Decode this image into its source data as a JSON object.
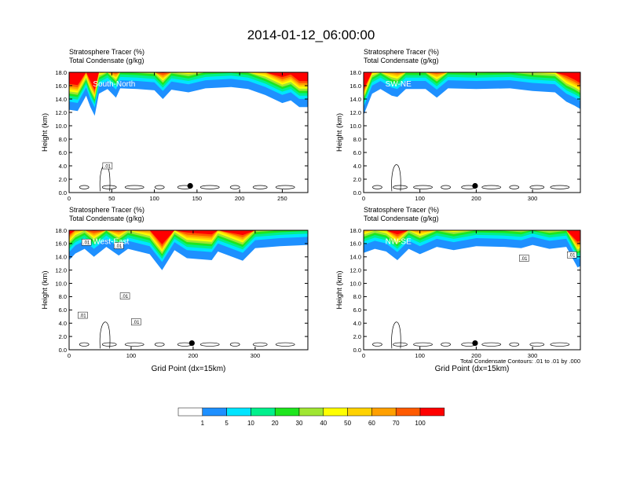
{
  "title": "2014-01-12_06:00:00",
  "colors": {
    "fill_levels": [
      "#ffffff",
      "#1e90ff",
      "#00e5ff",
      "#00f08c",
      "#1ee61e",
      "#a0e632",
      "#ffff00",
      "#ffd200",
      "#ffa000",
      "#ff5a00",
      "#ff0000"
    ],
    "contour": "#000000"
  },
  "colorbar": {
    "labels": [
      "1",
      "5",
      "10",
      "20",
      "30",
      "40",
      "50",
      "60",
      "70",
      "100"
    ]
  },
  "contour_note": "Total Condensate Contours: .01 to .01 by .000",
  "chart_data": [
    {
      "type": "heatmap",
      "left_title_1": "Stratosphere Tracer   (%)",
      "left_title_2": "Total Condensate   (g/kg)",
      "annotation": "South-North",
      "ylabel": "Height (km)",
      "xlabel": "",
      "xlim": [
        0,
        280
      ],
      "ylim": [
        0,
        18
      ],
      "x_ticks": [
        0,
        50,
        100,
        150,
        200,
        250
      ],
      "y_ticks": [
        "0.0",
        "2.0",
        "4.0",
        "6.0",
        "8.0",
        "10.0",
        "12.0",
        "14.0",
        "16.0",
        "18.0"
      ],
      "tracer_fronts": [
        [
          0,
          12.4
        ],
        [
          10,
          12.2
        ],
        [
          20,
          14.5
        ],
        [
          25,
          12.8
        ],
        [
          30,
          11.5
        ],
        [
          35,
          14.8
        ],
        [
          45,
          15.5
        ],
        [
          55,
          14.2
        ],
        [
          60,
          15.6
        ],
        [
          80,
          15.5
        ],
        [
          100,
          15.3
        ],
        [
          110,
          14.0
        ],
        [
          120,
          15.4
        ],
        [
          140,
          15.0
        ],
        [
          160,
          15.6
        ],
        [
          190,
          15.8
        ],
        [
          210,
          15.5
        ],
        [
          230,
          14.6
        ],
        [
          250,
          13.4
        ],
        [
          260,
          13.8
        ],
        [
          270,
          12.8
        ],
        [
          280,
          12.8
        ]
      ],
      "marker": {
        "x": 142,
        "y": 1.0
      },
      "contour_labels": [
        {
          "text": ".01",
          "x": 45,
          "y": 4.0
        }
      ]
    },
    {
      "type": "heatmap",
      "left_title_1": "Stratosphere Tracer   (%)",
      "left_title_2": "Total Condensate   (g/kg)",
      "annotation": "SW-NE",
      "ylabel": "Height (km)",
      "xlabel": "",
      "xlim": [
        0,
        385
      ],
      "ylim": [
        0,
        18
      ],
      "x_ticks": [
        0,
        100,
        200,
        300
      ],
      "y_ticks": [
        "0.0",
        "2.0",
        "4.0",
        "6.0",
        "8.0",
        "10.0",
        "12.0",
        "14.0",
        "16.0",
        "18.0"
      ],
      "tracer_fronts": [
        [
          0,
          11.6
        ],
        [
          15,
          14.8
        ],
        [
          30,
          15.5
        ],
        [
          50,
          14.5
        ],
        [
          60,
          14.3
        ],
        [
          75,
          15.5
        ],
        [
          110,
          15.5
        ],
        [
          130,
          14.2
        ],
        [
          150,
          15.6
        ],
        [
          200,
          15.5
        ],
        [
          260,
          15.6
        ],
        [
          300,
          15.2
        ],
        [
          340,
          15.0
        ],
        [
          360,
          13.6
        ],
        [
          375,
          13.0
        ],
        [
          385,
          12.5
        ]
      ],
      "marker": {
        "x": 198,
        "y": 1.0
      },
      "contour_labels": []
    },
    {
      "type": "heatmap",
      "left_title_1": "Stratosphere Tracer   (%)",
      "left_title_2": "Total Condensate   (g/kg)",
      "annotation": "West-East",
      "ylabel": "Height (km)",
      "xlabel": "Grid Point (dx=15km)",
      "xlim": [
        0,
        385
      ],
      "ylim": [
        0,
        18
      ],
      "x_ticks": [
        0,
        100,
        200,
        300
      ],
      "y_ticks": [
        "0.0",
        "2.0",
        "4.0",
        "6.0",
        "8.0",
        "10.0",
        "12.0",
        "14.0",
        "16.0",
        "18.0"
      ],
      "tracer_fronts": [
        [
          0,
          13.5
        ],
        [
          10,
          14.5
        ],
        [
          25,
          15.2
        ],
        [
          40,
          14.0
        ],
        [
          60,
          15.5
        ],
        [
          80,
          14.2
        ],
        [
          95,
          15.2
        ],
        [
          130,
          14.4
        ],
        [
          150,
          12.0
        ],
        [
          170,
          15.0
        ],
        [
          190,
          13.8
        ],
        [
          230,
          13.5
        ],
        [
          240,
          14.8
        ],
        [
          280,
          13.4
        ],
        [
          300,
          15.3
        ],
        [
          340,
          15.6
        ],
        [
          385,
          15.8
        ]
      ],
      "marker": {
        "x": 198,
        "y": 1.0
      },
      "contour_labels": [
        {
          "text": ".01",
          "x": 28,
          "y": 16.2
        },
        {
          "text": ".01",
          "x": 80,
          "y": 15.7
        },
        {
          "text": ".01",
          "x": 90,
          "y": 8.1
        },
        {
          "text": ".01",
          "x": 22,
          "y": 5.2
        },
        {
          "text": ".01",
          "x": 108,
          "y": 4.2
        }
      ]
    },
    {
      "type": "heatmap",
      "left_title_1": "Stratosphere Tracer   (%)",
      "left_title_2": "Total Condensate   (g/kg)",
      "annotation": "NW-SE",
      "ylabel": "Height (km)",
      "xlabel": "Grid Point (dx=15km)",
      "xlim": [
        0,
        385
      ],
      "ylim": [
        0,
        18
      ],
      "x_ticks": [
        0,
        100,
        200,
        300
      ],
      "y_ticks": [
        "0.0",
        "2.0",
        "4.0",
        "6.0",
        "8.0",
        "10.0",
        "12.0",
        "14.0",
        "16.0",
        "18.0"
      ],
      "tracer_fronts": [
        [
          0,
          14.6
        ],
        [
          20,
          15.2
        ],
        [
          40,
          14.8
        ],
        [
          60,
          13.5
        ],
        [
          80,
          15.2
        ],
        [
          100,
          14.4
        ],
        [
          130,
          15.5
        ],
        [
          160,
          15.0
        ],
        [
          200,
          15.6
        ],
        [
          250,
          15.5
        ],
        [
          280,
          15.3
        ],
        [
          300,
          15.8
        ],
        [
          330,
          15.2
        ],
        [
          360,
          15.5
        ],
        [
          380,
          12.4
        ],
        [
          385,
          12.6
        ]
      ],
      "marker": {
        "x": 198,
        "y": 1.0
      },
      "contour_labels": [
        {
          "text": ".01",
          "x": 285,
          "y": 13.8
        },
        {
          "text": ".01",
          "x": 370,
          "y": 14.3
        }
      ]
    }
  ]
}
